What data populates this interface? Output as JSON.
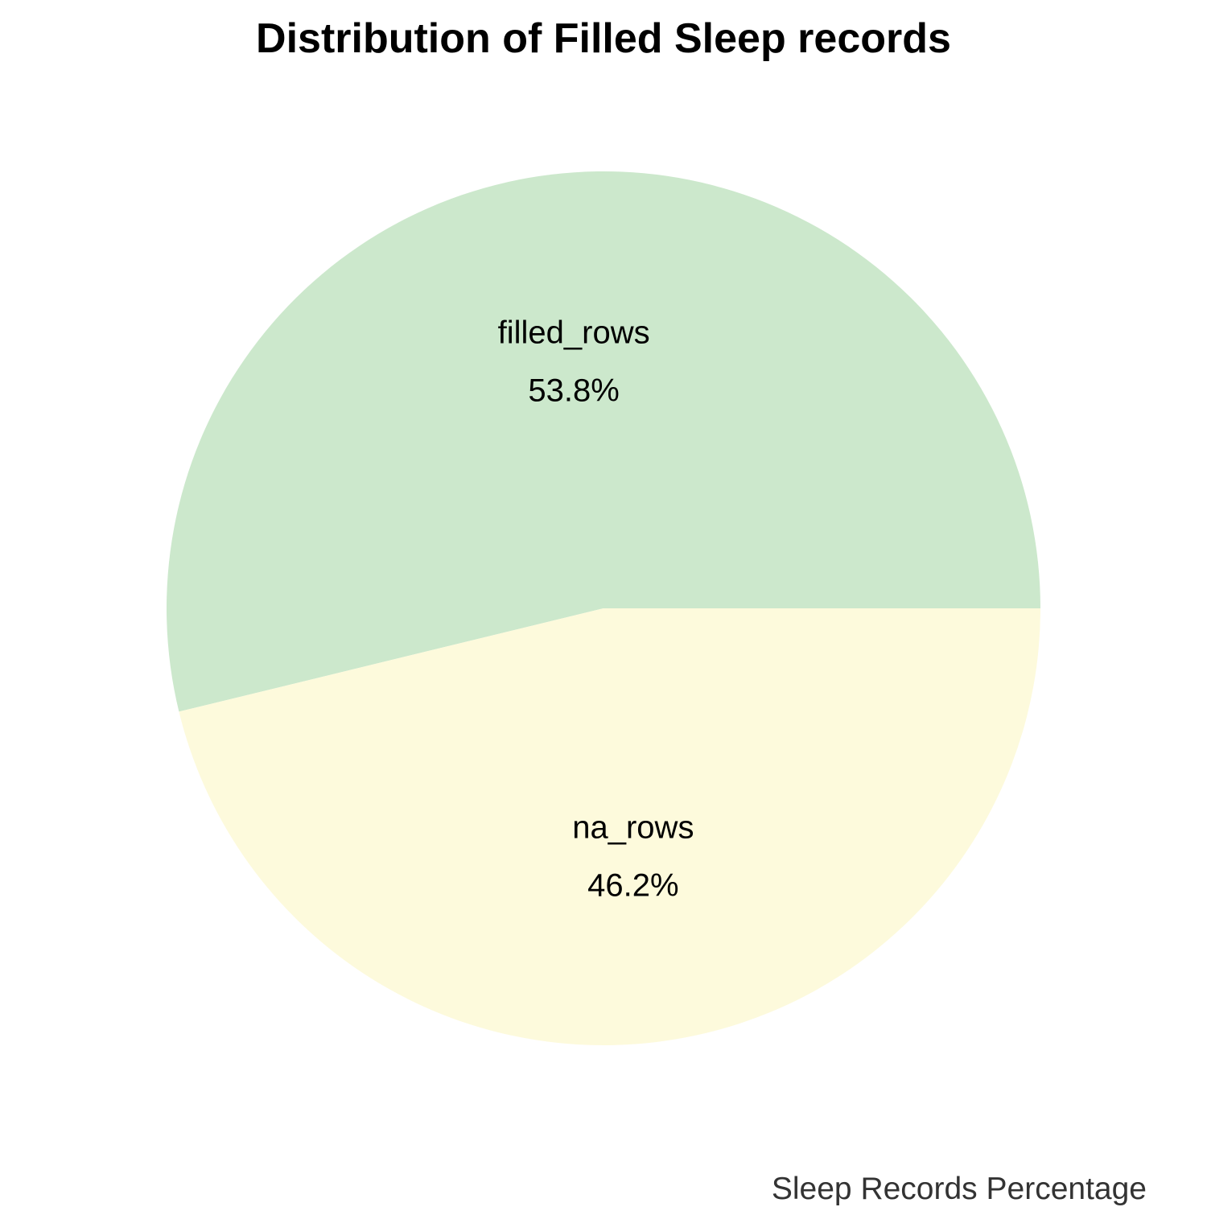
{
  "chart_data": {
    "type": "pie",
    "title": "Distribution of Filled Sleep records",
    "caption": "Sleep Records Percentage",
    "slices": [
      {
        "label": "filled_rows",
        "value": 53.8,
        "value_label": "53.8%",
        "color": "#CCE8CC"
      },
      {
        "label": "na_rows",
        "value": 46.2,
        "value_label": "46.2%",
        "color": "#FDFADC"
      }
    ],
    "legend": "none"
  }
}
